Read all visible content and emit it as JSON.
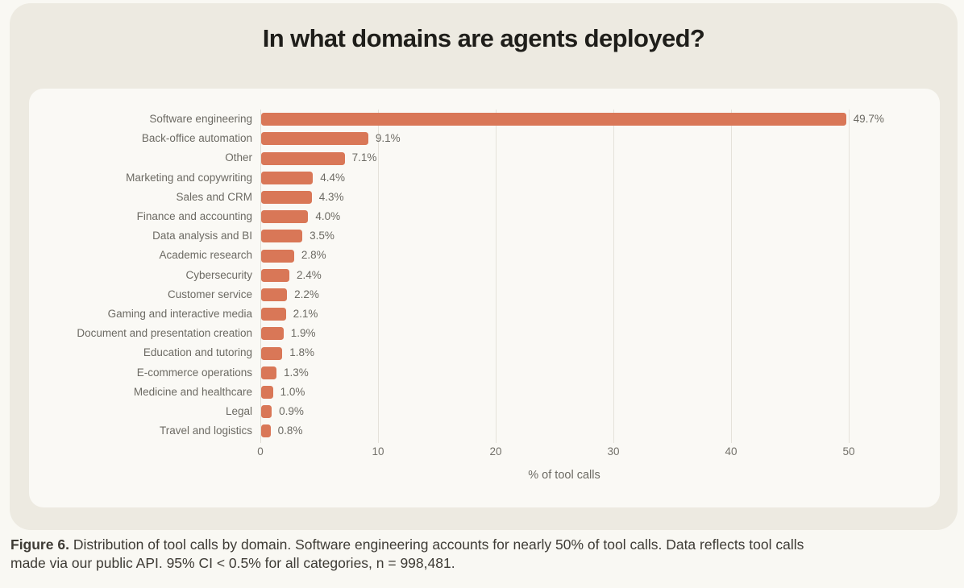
{
  "page": {
    "title": "In what domains are agents deployed?",
    "caption_bold": "Figure 6.",
    "caption_line1": "Distribution of tool calls by domain. Software engineering accounts for nearly 50% of tool calls. Data reflects tool calls",
    "caption_line2": "made via our public API. 95% CI < 0.5% for all categories, n = 998,481."
  },
  "colors": {
    "page_bg": "#F9F8F3",
    "card_bg": "#EDEAE1",
    "panel_bg": "#FAF9F5",
    "bar": "#D97757",
    "gridline": "#E5E2DA",
    "label_text": "#6C6A63",
    "title_text": "#1F1E1A",
    "caption_text": "#3E3B35"
  },
  "chart_data": {
    "type": "bar",
    "orientation": "horizontal",
    "title": "In what domains are agents deployed?",
    "xlabel": "% of tool calls",
    "ylabel": "",
    "xlim": [
      0,
      55
    ],
    "xticks": [
      0,
      10,
      20,
      30,
      40,
      50
    ],
    "grid": true,
    "categories": [
      "Software engineering",
      "Back-office automation",
      "Other",
      "Marketing and copywriting",
      "Sales and CRM",
      "Finance and accounting",
      "Data analysis and BI",
      "Academic research",
      "Cybersecurity",
      "Customer service",
      "Gaming and interactive media",
      "Document and presentation creation",
      "Education and tutoring",
      "E-commerce operations",
      "Medicine and healthcare",
      "Legal",
      "Travel and logistics"
    ],
    "values": [
      49.7,
      9.1,
      7.1,
      4.4,
      4.3,
      4.0,
      3.5,
      2.8,
      2.4,
      2.2,
      2.1,
      1.9,
      1.8,
      1.3,
      1.0,
      0.9,
      0.8
    ],
    "value_labels": [
      "49.7%",
      "9.1%",
      "7.1%",
      "4.4%",
      "4.3%",
      "4.0%",
      "3.5%",
      "2.8%",
      "2.4%",
      "2.2%",
      "2.1%",
      "1.9%",
      "1.8%",
      "1.3%",
      "1.0%",
      "0.9%",
      "0.8%"
    ]
  }
}
